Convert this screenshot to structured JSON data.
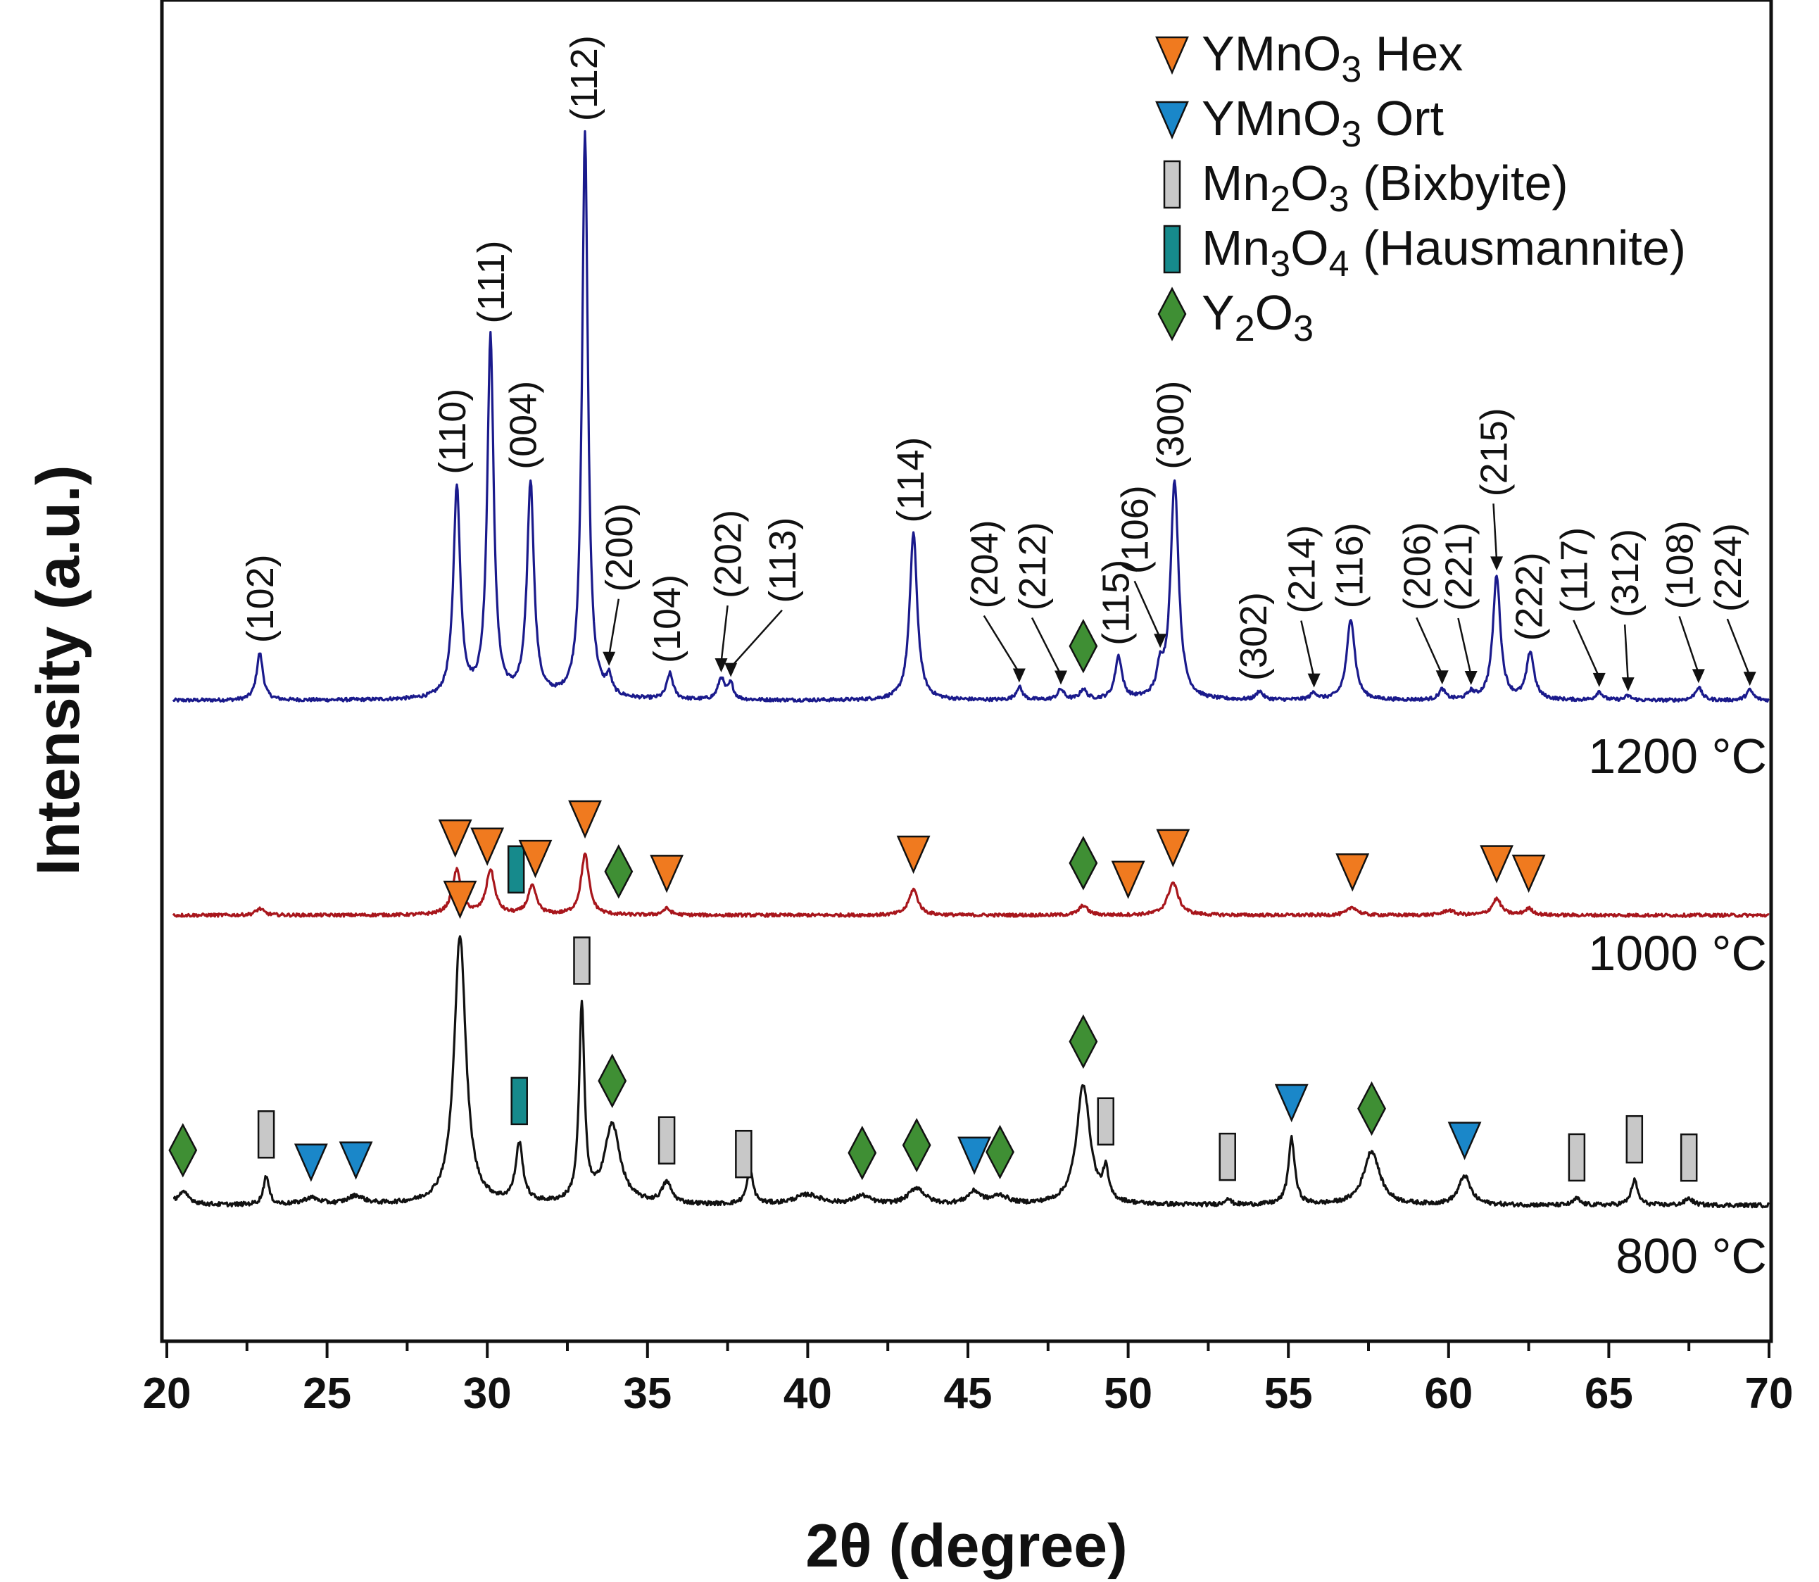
{
  "chart_data": {
    "type": "line",
    "title": "",
    "xlabel": "2θ (degree)",
    "ylabel": "Intensity (a.u.)",
    "xlim": [
      20,
      70
    ],
    "xticks": [
      "20",
      "25",
      "30",
      "35",
      "40",
      "45",
      "50",
      "55",
      "60",
      "65",
      "70"
    ],
    "yticks": [],
    "grid": false,
    "legend_position": "top-right",
    "legend": [
      {
        "symbol": "tri-down",
        "color": "#f07a1f",
        "label": "YMnO",
        "sub": "3",
        "suffix": " Hex"
      },
      {
        "symbol": "tri-down",
        "color": "#1a87c9",
        "label": "YMnO",
        "sub": "3",
        "suffix": " Ort"
      },
      {
        "symbol": "rect",
        "color": "#c8c8c8",
        "label": "Mn",
        "sub": "2",
        "mid": "O",
        "sub2": "3",
        "suffix": " (Bixbyite)"
      },
      {
        "symbol": "rect",
        "color": "#168a8c",
        "label": "Mn",
        "sub": "3",
        "mid": "O",
        "sub2": "4",
        "suffix": " (Hausmannite)"
      },
      {
        "symbol": "diamond",
        "color": "#3f8f34",
        "label": "Y",
        "sub": "2",
        "mid": "O",
        "sub2": "3",
        "suffix": ""
      }
    ],
    "series": [
      {
        "name": "1200 °C",
        "label": "1200 °C",
        "color": "#1a1a8c",
        "baseline": 0.0,
        "noise": 0.04,
        "peaks": [
          {
            "x": 22.9,
            "h": 0.55,
            "w": 0.12
          },
          {
            "x": 29.05,
            "h": 2.45,
            "w": 0.13
          },
          {
            "x": 30.1,
            "h": 4.2,
            "w": 0.12
          },
          {
            "x": 31.35,
            "h": 2.5,
            "w": 0.13
          },
          {
            "x": 33.05,
            "h": 6.6,
            "w": 0.11
          },
          {
            "x": 33.8,
            "h": 0.2,
            "w": 0.1
          },
          {
            "x": 35.7,
            "h": 0.3,
            "w": 0.12
          },
          {
            "x": 37.3,
            "h": 0.25,
            "w": 0.12
          },
          {
            "x": 37.6,
            "h": 0.18,
            "w": 0.1
          },
          {
            "x": 43.3,
            "h": 1.95,
            "w": 0.14
          },
          {
            "x": 46.6,
            "h": 0.15,
            "w": 0.12
          },
          {
            "x": 47.9,
            "h": 0.12,
            "w": 0.12
          },
          {
            "x": 48.6,
            "h": 0.12,
            "w": 0.12
          },
          {
            "x": 49.7,
            "h": 0.5,
            "w": 0.13
          },
          {
            "x": 51.0,
            "h": 0.3,
            "w": 0.12
          },
          {
            "x": 51.45,
            "h": 2.55,
            "w": 0.15
          },
          {
            "x": 54.1,
            "h": 0.1,
            "w": 0.12
          },
          {
            "x": 55.8,
            "h": 0.08,
            "w": 0.12
          },
          {
            "x": 56.95,
            "h": 0.95,
            "w": 0.15
          },
          {
            "x": 59.8,
            "h": 0.12,
            "w": 0.12
          },
          {
            "x": 60.7,
            "h": 0.08,
            "w": 0.12
          },
          {
            "x": 61.5,
            "h": 1.45,
            "w": 0.14
          },
          {
            "x": 62.55,
            "h": 0.55,
            "w": 0.14
          },
          {
            "x": 64.7,
            "h": 0.1,
            "w": 0.12
          },
          {
            "x": 65.6,
            "h": 0.05,
            "w": 0.12
          },
          {
            "x": 67.8,
            "h": 0.15,
            "w": 0.13
          },
          {
            "x": 69.4,
            "h": 0.12,
            "w": 0.13
          }
        ]
      },
      {
        "name": "1000 °C",
        "label": "1000 °C",
        "color": "#a8161c",
        "baseline": 0.0,
        "noise": 0.04,
        "peaks": [
          {
            "x": 22.9,
            "h": 0.08,
            "w": 0.15
          },
          {
            "x": 29.05,
            "h": 0.55,
            "w": 0.17
          },
          {
            "x": 30.1,
            "h": 0.55,
            "w": 0.16
          },
          {
            "x": 31.4,
            "h": 0.35,
            "w": 0.16
          },
          {
            "x": 33.05,
            "h": 0.75,
            "w": 0.15
          },
          {
            "x": 35.6,
            "h": 0.08,
            "w": 0.15
          },
          {
            "x": 43.3,
            "h": 0.32,
            "w": 0.17
          },
          {
            "x": 48.6,
            "h": 0.12,
            "w": 0.16
          },
          {
            "x": 51.4,
            "h": 0.4,
            "w": 0.2
          },
          {
            "x": 57.0,
            "h": 0.1,
            "w": 0.18
          },
          {
            "x": 60.0,
            "h": 0.06,
            "w": 0.2
          },
          {
            "x": 61.5,
            "h": 0.2,
            "w": 0.17
          },
          {
            "x": 62.5,
            "h": 0.08,
            "w": 0.16
          }
        ]
      },
      {
        "name": "800 °C",
        "label": "800 °C",
        "color": "#111111",
        "baseline": 0.0,
        "noise": 0.05,
        "peaks": [
          {
            "x": 20.5,
            "h": 0.15,
            "w": 0.25
          },
          {
            "x": 23.1,
            "h": 0.35,
            "w": 0.1
          },
          {
            "x": 24.5,
            "h": 0.08,
            "w": 0.3
          },
          {
            "x": 25.9,
            "h": 0.1,
            "w": 0.3
          },
          {
            "x": 29.15,
            "h": 3.25,
            "w": 0.22
          },
          {
            "x": 31.0,
            "h": 0.7,
            "w": 0.14
          },
          {
            "x": 32.95,
            "h": 2.35,
            "w": 0.1
          },
          {
            "x": 33.9,
            "h": 0.95,
            "w": 0.3
          },
          {
            "x": 35.6,
            "h": 0.25,
            "w": 0.18
          },
          {
            "x": 38.2,
            "h": 0.4,
            "w": 0.12
          },
          {
            "x": 40.0,
            "h": 0.12,
            "w": 0.5
          },
          {
            "x": 41.7,
            "h": 0.1,
            "w": 0.3
          },
          {
            "x": 43.4,
            "h": 0.2,
            "w": 0.3
          },
          {
            "x": 45.2,
            "h": 0.15,
            "w": 0.25
          },
          {
            "x": 46.0,
            "h": 0.1,
            "w": 0.3
          },
          {
            "x": 48.6,
            "h": 1.45,
            "w": 0.25
          },
          {
            "x": 49.3,
            "h": 0.35,
            "w": 0.1
          },
          {
            "x": 53.1,
            "h": 0.08,
            "w": 0.1
          },
          {
            "x": 55.1,
            "h": 0.8,
            "w": 0.12
          },
          {
            "x": 57.6,
            "h": 0.65,
            "w": 0.3
          },
          {
            "x": 60.5,
            "h": 0.35,
            "w": 0.22
          },
          {
            "x": 64.0,
            "h": 0.08,
            "w": 0.12
          },
          {
            "x": 65.8,
            "h": 0.3,
            "w": 0.12
          },
          {
            "x": 67.5,
            "h": 0.08,
            "w": 0.15
          }
        ]
      }
    ],
    "peak_labels": [
      {
        "text": "(102)",
        "x": 22.9,
        "label_x": 22.9,
        "arrow": false
      },
      {
        "text": "(110)",
        "x": 29.05,
        "label_x": 28.9,
        "arrow": false
      },
      {
        "text": "(111)",
        "x": 30.1,
        "label_x": 30.1,
        "arrow": false
      },
      {
        "text": "(004)",
        "x": 31.35,
        "label_x": 31.1,
        "arrow": false
      },
      {
        "text": "(112)",
        "x": 33.05,
        "label_x": 33.0,
        "arrow": false
      },
      {
        "text": "(200)",
        "x": 33.8,
        "label_x": 34.1,
        "arrow": true
      },
      {
        "text": "(104)",
        "x": 35.7,
        "label_x": 35.6,
        "arrow": false
      },
      {
        "text": "(202)",
        "x": 37.3,
        "label_x": 37.5,
        "arrow": true
      },
      {
        "text": "(113)",
        "x": 37.6,
        "label_x": 39.2,
        "arrow": true
      },
      {
        "text": "(114)",
        "x": 43.3,
        "label_x": 43.2,
        "arrow": false
      },
      {
        "text": "(204)",
        "x": 46.6,
        "label_x": 45.5,
        "arrow": true
      },
      {
        "text": "(212)",
        "x": 47.9,
        "label_x": 47.0,
        "arrow": true
      },
      {
        "text": "(115)",
        "x": 49.7,
        "label_x": 49.6,
        "arrow": false
      },
      {
        "text": "(106)",
        "x": 51.0,
        "label_x": 50.2,
        "arrow": true
      },
      {
        "text": "(300)",
        "x": 51.45,
        "label_x": 51.3,
        "arrow": false
      },
      {
        "text": "(302)",
        "x": 54.1,
        "label_x": 53.9,
        "arrow": false
      },
      {
        "text": "(214)",
        "x": 55.8,
        "label_x": 55.4,
        "arrow": true
      },
      {
        "text": "(116)",
        "x": 56.95,
        "label_x": 56.9,
        "arrow": false
      },
      {
        "text": "(206)",
        "x": 59.8,
        "label_x": 59.0,
        "arrow": true
      },
      {
        "text": "(221)",
        "x": 60.7,
        "label_x": 60.3,
        "arrow": true
      },
      {
        "text": "(215)",
        "x": 61.5,
        "label_x": 61.4,
        "arrow": true
      },
      {
        "text": "(222)",
        "x": 62.55,
        "label_x": 62.5,
        "arrow": false
      },
      {
        "text": "(117)",
        "x": 64.7,
        "label_x": 63.9,
        "arrow": true
      },
      {
        "text": "(312)",
        "x": 65.6,
        "label_x": 65.5,
        "arrow": true
      },
      {
        "text": "(108)",
        "x": 67.8,
        "label_x": 67.2,
        "arrow": true
      },
      {
        "text": "(224)",
        "x": 69.4,
        "label_x": 68.7,
        "arrow": true
      }
    ],
    "markers": [
      {
        "series": "1200 °C",
        "symbol": "diamond",
        "color": "#3f8f34",
        "x": 48.6
      },
      {
        "series": "1000 °C",
        "symbol": "tri-down",
        "color": "#f07a1f",
        "x": 29.0
      },
      {
        "series": "1000 °C",
        "symbol": "tri-down",
        "color": "#f07a1f",
        "x": 30.0
      },
      {
        "series": "1000 °C",
        "symbol": "rect",
        "color": "#168a8c",
        "x": 30.9
      },
      {
        "series": "1000 °C",
        "symbol": "tri-down",
        "color": "#f07a1f",
        "x": 31.5
      },
      {
        "series": "1000 °C",
        "symbol": "tri-down",
        "color": "#f07a1f",
        "x": 33.05
      },
      {
        "series": "1000 °C",
        "symbol": "diamond",
        "color": "#3f8f34",
        "x": 34.1
      },
      {
        "series": "1000 °C",
        "symbol": "tri-down",
        "color": "#f07a1f",
        "x": 35.6
      },
      {
        "series": "1000 °C",
        "symbol": "tri-down",
        "color": "#f07a1f",
        "x": 43.3
      },
      {
        "series": "1000 °C",
        "symbol": "diamond",
        "color": "#3f8f34",
        "x": 48.6
      },
      {
        "series": "1000 °C",
        "symbol": "tri-down",
        "color": "#f07a1f",
        "x": 50.0
      },
      {
        "series": "1000 °C",
        "symbol": "tri-down",
        "color": "#f07a1f",
        "x": 51.4
      },
      {
        "series": "1000 °C",
        "symbol": "tri-down",
        "color": "#f07a1f",
        "x": 57.0
      },
      {
        "series": "1000 °C",
        "symbol": "tri-down",
        "color": "#f07a1f",
        "x": 61.5
      },
      {
        "series": "1000 °C",
        "symbol": "tri-down",
        "color": "#f07a1f",
        "x": 62.5
      },
      {
        "series": "800 °C",
        "symbol": "diamond",
        "color": "#3f8f34",
        "x": 20.5
      },
      {
        "series": "800 °C",
        "symbol": "rect",
        "color": "#c8c8c8",
        "x": 23.1
      },
      {
        "series": "800 °C",
        "symbol": "tri-down",
        "color": "#1a87c9",
        "x": 24.5
      },
      {
        "series": "800 °C",
        "symbol": "tri-down",
        "color": "#1a87c9",
        "x": 25.9
      },
      {
        "series": "800 °C",
        "symbol": "tri-down",
        "color": "#f07a1f",
        "x": 29.15
      },
      {
        "series": "800 °C",
        "symbol": "rect",
        "color": "#168a8c",
        "x": 31.0
      },
      {
        "series": "800 °C",
        "symbol": "rect",
        "color": "#c8c8c8",
        "x": 32.95
      },
      {
        "series": "800 °C",
        "symbol": "diamond",
        "color": "#3f8f34",
        "x": 33.9
      },
      {
        "series": "800 °C",
        "symbol": "rect",
        "color": "#c8c8c8",
        "x": 35.6
      },
      {
        "series": "800 °C",
        "symbol": "rect",
        "color": "#c8c8c8",
        "x": 38.0
      },
      {
        "series": "800 °C",
        "symbol": "diamond",
        "color": "#3f8f34",
        "x": 41.7
      },
      {
        "series": "800 °C",
        "symbol": "diamond",
        "color": "#3f8f34",
        "x": 43.4
      },
      {
        "series": "800 °C",
        "symbol": "tri-down",
        "color": "#1a87c9",
        "x": 45.2
      },
      {
        "series": "800 °C",
        "symbol": "diamond",
        "color": "#3f8f34",
        "x": 46.0
      },
      {
        "series": "800 °C",
        "symbol": "diamond",
        "color": "#3f8f34",
        "x": 48.6
      },
      {
        "series": "800 °C",
        "symbol": "rect",
        "color": "#c8c8c8",
        "x": 49.3
      },
      {
        "series": "800 °C",
        "symbol": "rect",
        "color": "#c8c8c8",
        "x": 53.1
      },
      {
        "series": "800 °C",
        "symbol": "tri-down",
        "color": "#1a87c9",
        "x": 55.1
      },
      {
        "series": "800 °C",
        "symbol": "diamond",
        "color": "#3f8f34",
        "x": 57.6
      },
      {
        "series": "800 °C",
        "symbol": "tri-down",
        "color": "#1a87c9",
        "x": 60.5
      },
      {
        "series": "800 °C",
        "symbol": "rect",
        "color": "#c8c8c8",
        "x": 64.0
      },
      {
        "series": "800 °C",
        "symbol": "rect",
        "color": "#c8c8c8",
        "x": 65.8
      },
      {
        "series": "800 °C",
        "symbol": "rect",
        "color": "#c8c8c8",
        "x": 67.5
      }
    ]
  }
}
